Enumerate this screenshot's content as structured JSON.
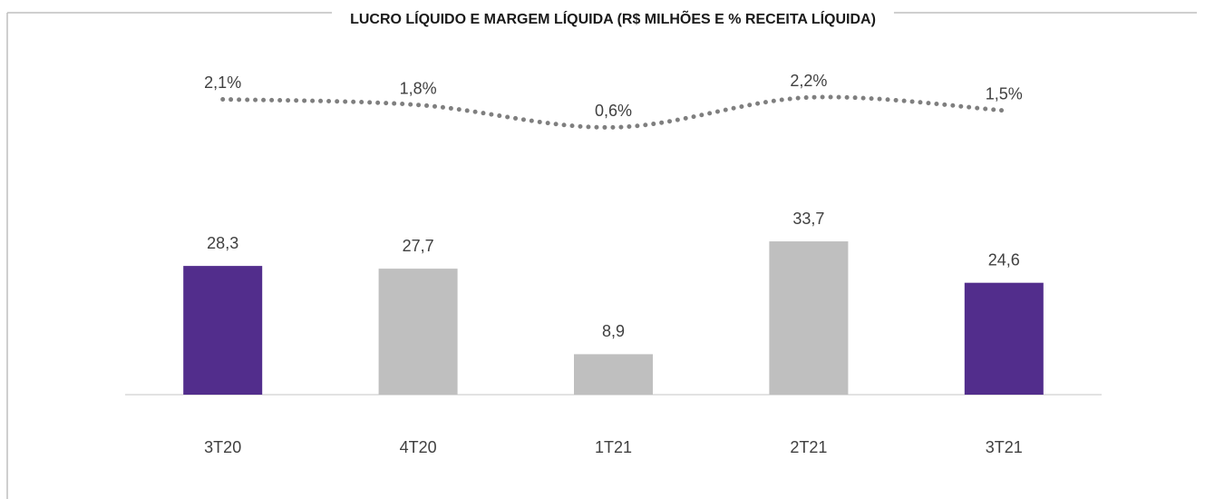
{
  "chart_data": {
    "type": "combo",
    "title": "LUCRO LÍQUIDO E MARGEM LÍQUIDA (R$ MILHÕES E % RECEITA LÍQUIDA)",
    "categories": [
      "3T20",
      "4T20",
      "1T21",
      "2T21",
      "3T21"
    ],
    "ylim": [
      0,
      75
    ],
    "y2lim": [
      -13.7,
      4.55
    ],
    "series": [
      {
        "type": "bar",
        "values": [
          28.3,
          27.7,
          8.9,
          33.7,
          24.6
        ],
        "value_labels": [
          "28,3",
          "27,7",
          "8,9",
          "33,7",
          "24,6"
        ],
        "colors": [
          "#522d8c",
          "#bfbfbf",
          "#bfbfbf",
          "#bfbfbf",
          "#522d8c"
        ]
      },
      {
        "type": "line",
        "axis": "y2",
        "values": [
          2.1,
          1.8,
          0.6,
          2.2,
          1.5
        ],
        "value_labels": [
          "2,1%",
          "1,8%",
          "0,6%",
          "2,2%",
          "1,5%"
        ],
        "color": "#7f7f7f",
        "dotted": true
      }
    ]
  }
}
